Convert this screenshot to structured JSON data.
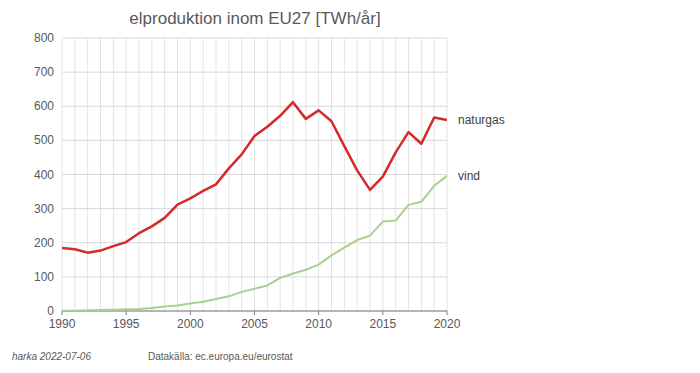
{
  "chart_data": {
    "type": "line",
    "title": "elproduktion inom EU27 [TWh/år]",
    "x": [
      1990,
      1991,
      1992,
      1993,
      1994,
      1995,
      1996,
      1997,
      1998,
      1999,
      2000,
      2001,
      2002,
      2003,
      2004,
      2005,
      2006,
      2007,
      2008,
      2009,
      2010,
      2011,
      2012,
      2013,
      2014,
      2015,
      2016,
      2017,
      2018,
      2019,
      2020
    ],
    "series": [
      {
        "name": "naturgas",
        "color": "#d42a2a",
        "values": [
          185,
          181,
          171,
          177,
          190,
          202,
          228,
          248,
          273,
          312,
          330,
          352,
          371,
          418,
          459,
          513,
          540,
          572,
          612,
          563,
          588,
          556,
          483,
          412,
          355,
          394,
          465,
          524,
          490,
          567,
          560
        ]
      },
      {
        "name": "vind",
        "color": "#a9d18e",
        "values": [
          1,
          1,
          2,
          3,
          4,
          5,
          6,
          9,
          13,
          16,
          22,
          27,
          35,
          43,
          56,
          65,
          75,
          97,
          110,
          121,
          136,
          163,
          186,
          208,
          221,
          262,
          265,
          311,
          320,
          367,
          396
        ]
      }
    ],
    "xlim": [
      1990,
      2020
    ],
    "xticks": [
      1990,
      1995,
      2000,
      2005,
      2010,
      2015,
      2020
    ],
    "ylim": [
      0,
      800
    ],
    "yticks": [
      0,
      100,
      200,
      300,
      400,
      500,
      600,
      700,
      800
    ],
    "grid": true,
    "annotations": [
      "harka 2022-07-06",
      "Datakälla: ec.europa.eu/eurostat"
    ]
  }
}
